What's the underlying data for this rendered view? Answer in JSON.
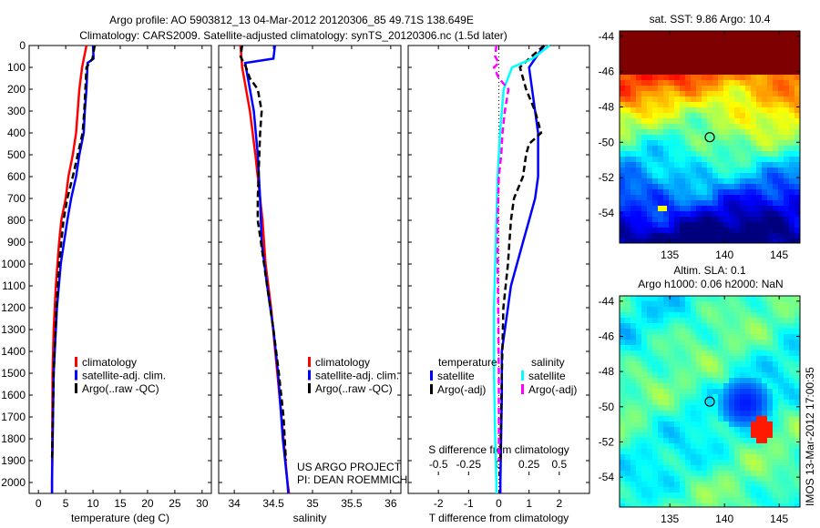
{
  "title_line1": "Argo profile: AO 5903812_13 04-Mar-2012 20120306_85 49.71S 138.649E",
  "title_line2": "Climatology: CARS2009. Satellite-adjusted climatology: synTS_20120306.nc (1.5d later)",
  "credit": [
    "US ARGO PROJECT",
    "PI: DEAN ROEMMICH"
  ],
  "side_stamp": "IMOS 13-Mar-2012 17:00:35",
  "colors": {
    "climatology": "#ff0000",
    "satellite": "#0000ff",
    "argo": "#000000",
    "sal_satellite": "#00ffff",
    "sal_argo": "#ff00ff"
  },
  "chart_data": [
    {
      "type": "line",
      "name": "temperature",
      "xlabel": "temperature (deg C)",
      "ylabel": "",
      "xlim": [
        -1.7,
        31.7
      ],
      "ylim": [
        2050,
        0
      ],
      "xticks": [
        0,
        5,
        10,
        15,
        20,
        25,
        30
      ],
      "yticks": [
        0,
        100,
        200,
        300,
        400,
        500,
        600,
        700,
        800,
        900,
        1000,
        1100,
        1200,
        1300,
        1400,
        1500,
        1600,
        1700,
        1800,
        1900,
        2000
      ],
      "legend": [
        "climatology",
        "satellite-adj. clim.",
        "Argo(..raw -QC)"
      ],
      "series": [
        {
          "name": "climatology",
          "style": "solid",
          "depth": [
            0,
            100,
            200,
            300,
            400,
            500,
            600,
            700,
            800,
            900,
            1000,
            1100,
            1300,
            1500,
            2000,
            2050
          ],
          "values": [
            8.8,
            8.0,
            7.5,
            7.2,
            6.9,
            6.3,
            5.5,
            5.0,
            4.2,
            3.8,
            3.5,
            3.2,
            2.8,
            2.6,
            2.5,
            2.5
          ]
        },
        {
          "name": "satellite-adj. clim.",
          "style": "solid",
          "depth": [
            0,
            60,
            80,
            200,
            300,
            400,
            500,
            600,
            700,
            800,
            900,
            1000,
            1200,
            1500,
            2000,
            2050
          ],
          "values": [
            10.0,
            10.1,
            9.0,
            8.8,
            8.5,
            8.3,
            7.5,
            6.9,
            6.0,
            5.3,
            4.7,
            4.1,
            3.4,
            2.8,
            2.5,
            2.5
          ]
        },
        {
          "name": "Argo(..raw -QC)",
          "style": "dashed",
          "depth": [
            0,
            60,
            100,
            200,
            300,
            400,
            500,
            600,
            700,
            800,
            900,
            1000,
            1200,
            1500,
            1900
          ],
          "values": [
            10.3,
            9.9,
            8.8,
            8.6,
            8.4,
            8.1,
            7.2,
            6.3,
            5.3,
            4.6,
            4.2,
            3.8,
            3.3,
            2.8,
            2.5
          ]
        }
      ]
    },
    {
      "type": "line",
      "name": "salinity",
      "xlabel": "salinity",
      "xlim": [
        33.8,
        36.13
      ],
      "ylim": [
        2050,
        0
      ],
      "xticks": [
        34,
        34.5,
        35,
        35.5,
        36
      ],
      "legend": [
        "climatology",
        "satellite-adj. clim.",
        "Argo(..raw -QC)"
      ],
      "series": [
        {
          "name": "climatology",
          "style": "solid",
          "depth": [
            0,
            100,
            300,
            500,
            700,
            800,
            1000,
            1200,
            1500,
            1800,
            2000,
            2050
          ],
          "values": [
            34.08,
            34.1,
            34.2,
            34.27,
            34.33,
            34.36,
            34.4,
            34.47,
            34.55,
            34.63,
            34.68,
            34.7
          ]
        },
        {
          "name": "satellite-adj. clim.",
          "style": "solid",
          "depth": [
            0,
            60,
            80,
            100,
            200,
            300,
            500,
            700,
            900,
            1100,
            1300,
            1500,
            1800,
            2000,
            2050
          ],
          "values": [
            34.52,
            34.5,
            34.14,
            34.15,
            34.2,
            34.25,
            34.3,
            34.33,
            34.35,
            34.42,
            34.5,
            34.56,
            34.62,
            34.68,
            34.69
          ]
        },
        {
          "name": "Argo(..raw -QC)",
          "style": "dashed",
          "depth": [
            0,
            50,
            100,
            150,
            200,
            300,
            400,
            500,
            700,
            800,
            900,
            1100,
            1300,
            1500,
            1700,
            1900
          ],
          "values": [
            34.1,
            34.08,
            34.15,
            34.2,
            34.3,
            34.35,
            34.33,
            34.32,
            34.3,
            34.3,
            34.34,
            34.42,
            34.5,
            34.57,
            34.63,
            34.66
          ]
        }
      ]
    },
    {
      "type": "line",
      "name": "difference",
      "xlabel": "T difference from climatology",
      "x2label": "S difference from climatology",
      "xlim": [
        -3,
        3
      ],
      "ylim": [
        2050,
        0
      ],
      "xticks": [
        -2,
        -1,
        0,
        1,
        2
      ],
      "x2ticks": [
        -0.5,
        -0.25,
        0,
        0.25,
        0.5
      ],
      "legend_titles": [
        "temperature",
        "salinity"
      ],
      "legend": [
        "satellite",
        "Argo(-adj)",
        "satellite",
        "Argo(-adj)"
      ],
      "series": [
        {
          "name": "T satellite",
          "axis": "T",
          "style": "solid",
          "depth": [
            0,
            60,
            100,
            200,
            300,
            400,
            500,
            600,
            700,
            800,
            900,
            1000,
            1100,
            1200,
            1400,
            1600,
            2000,
            2050
          ],
          "values": [
            1.5,
            1.2,
            1.0,
            1.1,
            1.2,
            1.3,
            1.3,
            1.3,
            1.2,
            1.0,
            0.8,
            0.6,
            0.4,
            0.3,
            0.1,
            0.1,
            0.05,
            0.05
          ]
        },
        {
          "name": "T Argo(-adj)",
          "axis": "T",
          "style": "dashed",
          "depth": [
            0,
            60,
            100,
            200,
            300,
            400,
            450,
            500,
            600,
            700,
            800,
            900,
            1000,
            1200,
            1500,
            1900
          ],
          "values": [
            1.5,
            1.0,
            0.7,
            0.9,
            1.2,
            1.4,
            1.0,
            0.9,
            0.8,
            0.5,
            0.4,
            0.35,
            0.3,
            0.15,
            0.1,
            0.05
          ]
        },
        {
          "name": "S satellite",
          "axis": "S",
          "style": "solid",
          "depth": [
            0,
            60,
            100,
            200,
            400,
            600,
            800,
            1000,
            1200,
            1500,
            1800,
            2000,
            2050
          ],
          "values": [
            0.42,
            0.28,
            0.11,
            0.04,
            0.01,
            -0.01,
            -0.02,
            -0.03,
            -0.04,
            -0.04,
            -0.03,
            -0.02,
            -0.02
          ]
        },
        {
          "name": "S Argo(-adj)",
          "axis": "S",
          "style": "dashed",
          "depth": [
            0,
            50,
            80,
            100,
            150,
            200,
            300,
            400,
            500,
            600,
            800,
            1000,
            1500,
            1900
          ],
          "values": [
            -0.02,
            -0.03,
            0.0,
            -0.04,
            0.0,
            0.08,
            0.05,
            0.03,
            0.02,
            0.0,
            -0.01,
            -0.01,
            0.0,
            0.0
          ]
        }
      ]
    },
    {
      "type": "heatmap",
      "name": "sst-map",
      "title": "sat. SST: 9.86 Argo: 10.4",
      "xlim": [
        130.4,
        146.9
      ],
      "ylim": [
        -55.7,
        -43.7
      ],
      "xticks": [
        135,
        140,
        145
      ],
      "yticks": [
        -44,
        -46,
        -48,
        -50,
        -52,
        -54
      ],
      "argo_position": [
        138.649,
        -49.71
      ]
    },
    {
      "type": "heatmap",
      "name": "sla-map",
      "title": [
        "Altim. SLA: 0.1",
        "Argo h1000: 0.06 h2000: NaN"
      ],
      "xlim": [
        130.4,
        146.9
      ],
      "ylim": [
        -55.7,
        -43.7
      ],
      "xticks": [
        135,
        140,
        145
      ],
      "yticks": [
        -44,
        -46,
        -48,
        -50,
        -52,
        -54
      ],
      "argo_position": [
        138.649,
        -49.71
      ]
    }
  ]
}
